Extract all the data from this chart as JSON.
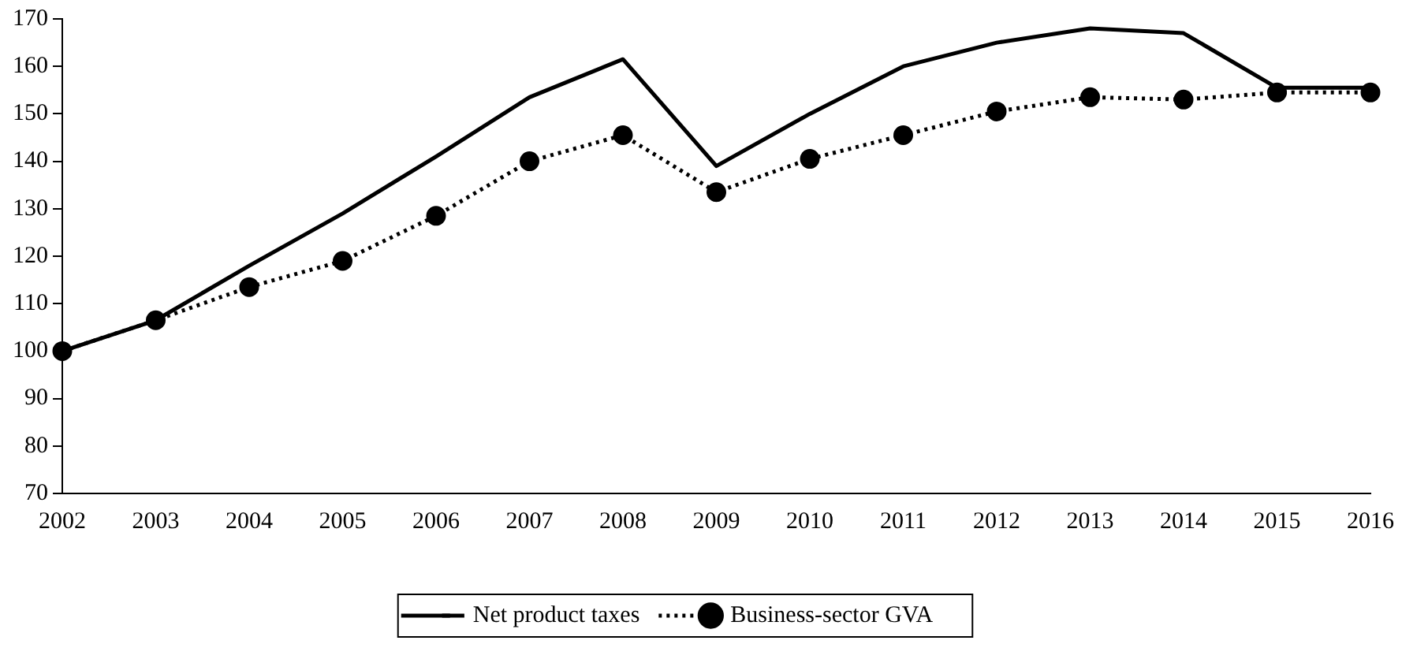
{
  "chart_data": {
    "type": "line",
    "categories": [
      "2002",
      "2003",
      "2004",
      "2005",
      "2006",
      "2007",
      "2008",
      "2009",
      "2010",
      "2011",
      "2012",
      "2013",
      "2014",
      "2015",
      "2016"
    ],
    "series": [
      {
        "name": "Net product taxes",
        "color": "#000000",
        "line_style": "solid",
        "marker": "none",
        "values": [
          100,
          106.5,
          118,
          129,
          141,
          153.5,
          161.5,
          139,
          150,
          160,
          165,
          168,
          167,
          155.5,
          155.5
        ]
      },
      {
        "name": "Business-sector GVA",
        "color": "#000000",
        "line_style": "dotted",
        "marker": "circle",
        "values": [
          100,
          106.5,
          113.5,
          119,
          128.5,
          140,
          145.5,
          133.5,
          140.5,
          145.5,
          150.5,
          153.5,
          153,
          154.5,
          154.5
        ]
      }
    ],
    "ylim": [
      70,
      170
    ],
    "yticks": [
      70,
      80,
      90,
      100,
      110,
      120,
      130,
      140,
      150,
      160,
      170
    ],
    "grid": false,
    "legend": "bottom"
  }
}
